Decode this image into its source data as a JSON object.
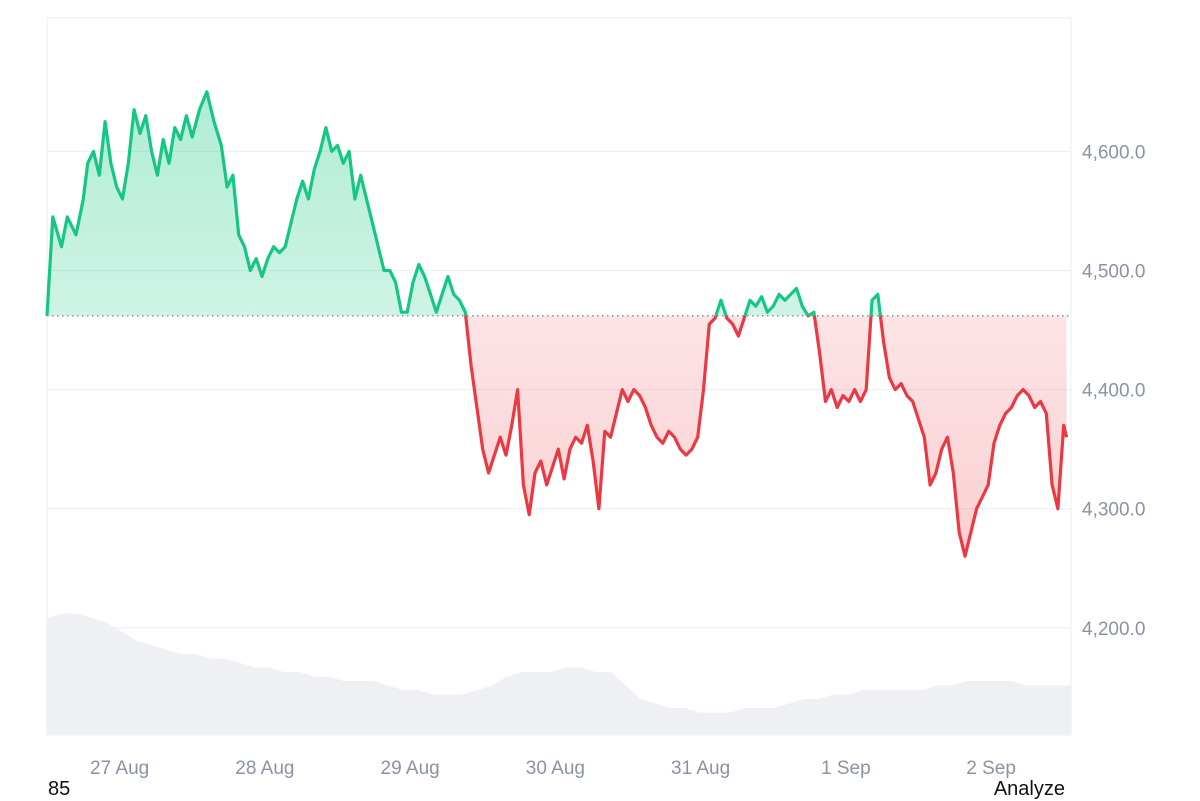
{
  "chart_data": {
    "type": "line",
    "baseline": 4462,
    "ylim": [
      4110,
      4712
    ],
    "y_ticks": [
      4200,
      4300,
      4400,
      4500,
      4600
    ],
    "x_labels": [
      "27 Aug",
      "28 Aug",
      "29 Aug",
      "30 Aug",
      "31 Aug",
      "1 Sep",
      "2 Sep"
    ],
    "x_label_positions": [
      0.5,
      1.5,
      2.5,
      3.5,
      4.5,
      5.5,
      6.5
    ],
    "x_range": [
      0.0,
      7.05
    ],
    "colors": {
      "up": "#16c784",
      "down": "#ea3943",
      "volume": "#eef0f3"
    },
    "series": [
      {
        "points": [
          [
            0.0,
            4462
          ],
          [
            0.04,
            4545
          ],
          [
            0.1,
            4520
          ],
          [
            0.14,
            4545
          ],
          [
            0.2,
            4530
          ],
          [
            0.25,
            4560
          ],
          [
            0.28,
            4590
          ],
          [
            0.32,
            4600
          ],
          [
            0.36,
            4580
          ],
          [
            0.4,
            4625
          ],
          [
            0.44,
            4590
          ],
          [
            0.48,
            4570
          ],
          [
            0.52,
            4560
          ],
          [
            0.56,
            4590
          ],
          [
            0.6,
            4635
          ],
          [
            0.64,
            4615
          ],
          [
            0.68,
            4630
          ],
          [
            0.72,
            4600
          ],
          [
            0.76,
            4580
          ],
          [
            0.8,
            4610
          ],
          [
            0.84,
            4590
          ],
          [
            0.88,
            4620
          ],
          [
            0.92,
            4610
          ],
          [
            0.96,
            4630
          ],
          [
            1.0,
            4612
          ],
          [
            1.05,
            4635
          ],
          [
            1.1,
            4650
          ],
          [
            1.15,
            4625
          ],
          [
            1.2,
            4605
          ],
          [
            1.24,
            4570
          ],
          [
            1.28,
            4580
          ],
          [
            1.32,
            4530
          ],
          [
            1.36,
            4520
          ],
          [
            1.4,
            4500
          ],
          [
            1.44,
            4510
          ],
          [
            1.48,
            4495
          ],
          [
            1.52,
            4510
          ],
          [
            1.56,
            4520
          ],
          [
            1.6,
            4515
          ],
          [
            1.64,
            4520
          ],
          [
            1.68,
            4540
          ],
          [
            1.72,
            4560
          ],
          [
            1.76,
            4575
          ],
          [
            1.8,
            4560
          ],
          [
            1.84,
            4585
          ],
          [
            1.88,
            4600
          ],
          [
            1.92,
            4620
          ],
          [
            1.96,
            4600
          ],
          [
            2.0,
            4605
          ],
          [
            2.04,
            4590
          ],
          [
            2.08,
            4600
          ],
          [
            2.12,
            4560
          ],
          [
            2.16,
            4580
          ],
          [
            2.2,
            4560
          ],
          [
            2.24,
            4540
          ],
          [
            2.28,
            4520
          ],
          [
            2.32,
            4500
          ],
          [
            2.36,
            4500
          ],
          [
            2.4,
            4490
          ],
          [
            2.44,
            4465
          ],
          [
            2.48,
            4465
          ],
          [
            2.52,
            4490
          ],
          [
            2.56,
            4505
          ],
          [
            2.6,
            4495
          ],
          [
            2.64,
            4480
          ],
          [
            2.68,
            4465
          ],
          [
            2.72,
            4480
          ],
          [
            2.76,
            4495
          ],
          [
            2.8,
            4480
          ],
          [
            2.84,
            4475
          ],
          [
            2.88,
            4465
          ],
          [
            2.92,
            4420
          ],
          [
            2.96,
            4385
          ],
          [
            3.0,
            4350
          ],
          [
            3.04,
            4330
          ],
          [
            3.08,
            4345
          ],
          [
            3.12,
            4360
          ],
          [
            3.16,
            4345
          ],
          [
            3.2,
            4370
          ],
          [
            3.24,
            4400
          ],
          [
            3.28,
            4320
          ],
          [
            3.32,
            4295
          ],
          [
            3.36,
            4330
          ],
          [
            3.4,
            4340
          ],
          [
            3.44,
            4320
          ],
          [
            3.48,
            4335
          ],
          [
            3.52,
            4350
          ],
          [
            3.56,
            4325
          ],
          [
            3.6,
            4350
          ],
          [
            3.64,
            4360
          ],
          [
            3.68,
            4355
          ],
          [
            3.72,
            4370
          ],
          [
            3.76,
            4340
          ],
          [
            3.8,
            4300
          ],
          [
            3.84,
            4365
          ],
          [
            3.88,
            4360
          ],
          [
            3.92,
            4380
          ],
          [
            3.96,
            4400
          ],
          [
            4.0,
            4390
          ],
          [
            4.04,
            4400
          ],
          [
            4.08,
            4395
          ],
          [
            4.12,
            4385
          ],
          [
            4.16,
            4370
          ],
          [
            4.2,
            4360
          ],
          [
            4.24,
            4355
          ],
          [
            4.28,
            4365
          ],
          [
            4.32,
            4360
          ],
          [
            4.36,
            4350
          ],
          [
            4.4,
            4345
          ],
          [
            4.44,
            4350
          ],
          [
            4.48,
            4360
          ],
          [
            4.52,
            4400
          ],
          [
            4.56,
            4455
          ],
          [
            4.6,
            4460
          ],
          [
            4.64,
            4475
          ],
          [
            4.68,
            4460
          ],
          [
            4.72,
            4455
          ],
          [
            4.76,
            4445
          ],
          [
            4.8,
            4460
          ],
          [
            4.84,
            4475
          ],
          [
            4.88,
            4470
          ],
          [
            4.92,
            4478
          ],
          [
            4.96,
            4465
          ],
          [
            5.0,
            4470
          ],
          [
            5.04,
            4480
          ],
          [
            5.08,
            4475
          ],
          [
            5.12,
            4480
          ],
          [
            5.16,
            4485
          ],
          [
            5.2,
            4470
          ],
          [
            5.24,
            4462
          ],
          [
            5.28,
            4465
          ],
          [
            5.32,
            4430
          ],
          [
            5.36,
            4390
          ],
          [
            5.4,
            4400
          ],
          [
            5.44,
            4385
          ],
          [
            5.48,
            4395
          ],
          [
            5.52,
            4390
          ],
          [
            5.56,
            4400
          ],
          [
            5.6,
            4390
          ],
          [
            5.64,
            4400
          ],
          [
            5.68,
            4475
          ],
          [
            5.72,
            4480
          ],
          [
            5.76,
            4440
          ],
          [
            5.8,
            4410
          ],
          [
            5.84,
            4400
          ],
          [
            5.88,
            4405
          ],
          [
            5.92,
            4395
          ],
          [
            5.96,
            4390
          ],
          [
            6.0,
            4375
          ],
          [
            6.04,
            4360
          ],
          [
            6.08,
            4320
          ],
          [
            6.12,
            4330
          ],
          [
            6.16,
            4350
          ],
          [
            6.2,
            4360
          ],
          [
            6.24,
            4330
          ],
          [
            6.28,
            4280
          ],
          [
            6.32,
            4260
          ],
          [
            6.36,
            4280
          ],
          [
            6.4,
            4300
          ],
          [
            6.44,
            4310
          ],
          [
            6.48,
            4320
          ],
          [
            6.52,
            4355
          ],
          [
            6.56,
            4370
          ],
          [
            6.6,
            4380
          ],
          [
            6.64,
            4385
          ],
          [
            6.68,
            4395
          ],
          [
            6.72,
            4400
          ],
          [
            6.76,
            4395
          ],
          [
            6.8,
            4385
          ],
          [
            6.84,
            4390
          ],
          [
            6.88,
            4380
          ],
          [
            6.92,
            4320
          ],
          [
            6.96,
            4300
          ],
          [
            7.0,
            4370
          ],
          [
            7.02,
            4360
          ]
        ]
      }
    ],
    "volume": [
      0.26,
      0.27,
      0.27,
      0.26,
      0.25,
      0.23,
      0.21,
      0.2,
      0.19,
      0.18,
      0.18,
      0.17,
      0.17,
      0.16,
      0.15,
      0.15,
      0.14,
      0.14,
      0.13,
      0.13,
      0.12,
      0.12,
      0.12,
      0.11,
      0.1,
      0.1,
      0.09,
      0.09,
      0.09,
      0.1,
      0.11,
      0.13,
      0.14,
      0.14,
      0.14,
      0.15,
      0.15,
      0.14,
      0.14,
      0.11,
      0.08,
      0.07,
      0.06,
      0.06,
      0.05,
      0.05,
      0.05,
      0.06,
      0.06,
      0.06,
      0.07,
      0.08,
      0.08,
      0.09,
      0.09,
      0.1,
      0.1,
      0.1,
      0.1,
      0.1,
      0.11,
      0.11,
      0.12,
      0.12,
      0.12,
      0.12,
      0.11,
      0.11,
      0.11,
      0.11
    ],
    "footer": {
      "left": "85",
      "right": "Analyze"
    }
  }
}
